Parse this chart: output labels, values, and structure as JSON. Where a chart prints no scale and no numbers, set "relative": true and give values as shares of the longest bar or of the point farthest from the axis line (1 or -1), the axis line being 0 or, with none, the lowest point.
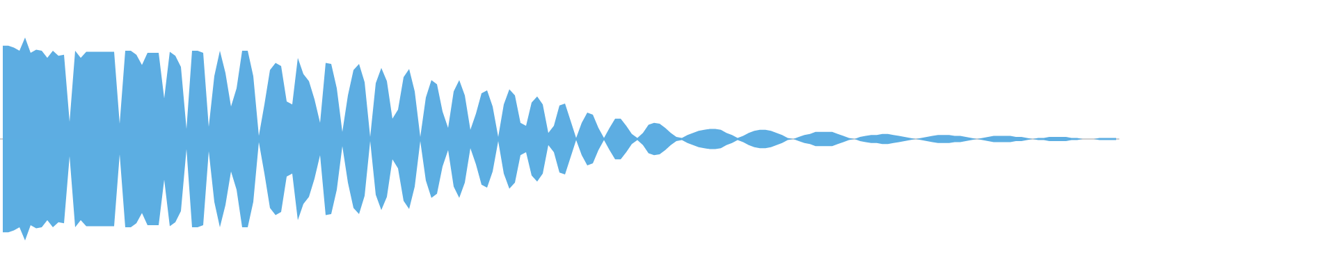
{
  "chart_data": {
    "type": "area",
    "relative": true,
    "tick_labels": false,
    "categories": [
      null,
      null,
      null,
      null,
      null,
      null,
      null,
      null,
      null,
      null,
      null,
      null,
      null,
      null,
      null,
      null,
      null,
      null,
      null,
      null,
      null,
      null,
      null,
      null,
      null,
      null,
      null,
      null,
      null,
      null,
      null,
      null,
      null,
      null,
      null,
      null,
      null,
      null,
      null,
      null,
      null,
      null,
      null,
      null,
      null,
      null,
      null,
      null,
      null,
      null,
      null,
      null,
      null,
      null,
      null,
      null,
      null,
      null,
      null,
      null,
      null,
      null,
      null,
      null,
      null,
      null,
      null,
      null,
      null,
      null,
      null,
      null,
      null,
      null,
      null,
      null,
      null,
      null,
      null,
      null,
      null,
      null,
      null,
      null,
      null,
      null,
      null,
      null,
      null,
      null,
      null,
      null,
      null,
      null,
      null,
      null,
      null,
      null,
      null,
      null,
      null,
      null,
      null,
      null,
      null,
      null,
      null,
      null,
      null,
      null,
      null,
      null,
      null,
      null,
      null,
      null,
      null,
      null,
      null,
      null,
      null,
      null,
      null,
      null,
      null,
      null,
      null,
      null,
      null,
      null,
      null,
      null,
      null,
      null,
      null,
      null,
      null,
      null,
      null,
      null,
      null,
      null,
      null,
      null,
      null,
      null,
      null,
      null,
      null,
      null,
      null,
      null,
      null,
      null,
      null,
      null,
      null,
      null,
      null,
      null,
      null,
      null,
      null,
      null,
      null,
      null,
      null,
      null,
      null,
      null,
      null,
      null,
      null,
      null,
      null,
      null,
      null,
      null,
      null,
      null,
      null,
      null,
      null,
      null,
      null,
      null,
      null,
      null,
      null,
      null,
      null,
      null,
      null,
      null,
      null,
      null,
      null,
      null,
      null,
      null,
      null
    ],
    "series": [
      {
        "color": "#5dade2",
        "values": [
          0.92,
          0.92,
          0.9,
          0.87,
          1.0,
          0.85,
          0.88,
          0.87,
          0.8,
          0.87,
          0.82,
          0.83,
          0.17,
          0.87,
          0.8,
          0.86,
          0.86,
          0.86,
          0.86,
          0.86,
          0.86,
          0.15,
          0.87,
          0.87,
          0.83,
          0.73,
          0.85,
          0.85,
          0.85,
          0.4,
          0.86,
          0.82,
          0.71,
          0.1,
          0.87,
          0.87,
          0.85,
          0.12,
          0.62,
          0.87,
          0.65,
          0.32,
          0.5,
          0.87,
          0.87,
          0.62,
          0.03,
          0.34,
          0.68,
          0.75,
          0.72,
          0.37,
          0.34,
          0.8,
          0.64,
          0.57,
          0.39,
          0.16,
          0.75,
          0.74,
          0.5,
          0.07,
          0.43,
          0.68,
          0.74,
          0.56,
          0.02,
          0.55,
          0.7,
          0.57,
          0.2,
          0.29,
          0.61,
          0.69,
          0.47,
          0.02,
          0.41,
          0.58,
          0.54,
          0.27,
          0.11,
          0.47,
          0.58,
          0.43,
          0.09,
          0.25,
          0.45,
          0.48,
          0.32,
          0.02,
          0.34,
          0.49,
          0.43,
          0.16,
          0.13,
          0.36,
          0.42,
          0.34,
          0.06,
          0.13,
          0.33,
          0.35,
          0.18,
          0.01,
          0.16,
          0.26,
          0.24,
          0.11,
          0.01,
          0.11,
          0.2,
          0.2,
          0.13,
          0.05,
          0.01,
          0.06,
          0.14,
          0.16,
          0.15,
          0.11,
          0.06,
          0.02,
          0.01,
          0.04,
          0.06,
          0.08,
          0.09,
          0.1,
          0.1,
          0.09,
          0.06,
          0.04,
          0.01,
          0.03,
          0.06,
          0.08,
          0.09,
          0.09,
          0.08,
          0.06,
          0.04,
          0.01,
          0,
          0.02,
          0.04,
          0.05,
          0.07,
          0.07,
          0.07,
          0.07,
          0.05,
          0.03,
          0.01,
          0,
          0.02,
          0.03,
          0.04,
          0.04,
          0.05,
          0.05,
          0.04,
          0.03,
          0.02,
          0.01,
          0,
          0.01,
          0.02,
          0.03,
          0.04,
          0.04,
          0.04,
          0.03,
          0.03,
          0.02,
          0.01,
          0,
          0.01,
          0.02,
          0.03,
          0.03,
          0.03,
          0.03,
          0.02,
          0.02,
          0.01,
          0,
          0.01,
          0.01,
          0.02,
          0.02,
          0.02,
          0.02,
          0.01,
          0.01,
          0,
          0,
          0,
          0.01,
          0.01,
          0.01,
          0.01
        ]
      },
      {
        "color": "#5caee2",
        "values": [
          -0.92,
          -0.92,
          -0.9,
          -0.87,
          -1.0,
          -0.85,
          -0.88,
          -0.87,
          -0.8,
          -0.87,
          -0.82,
          -0.83,
          -0.17,
          -0.87,
          -0.8,
          -0.86,
          -0.86,
          -0.86,
          -0.86,
          -0.86,
          -0.86,
          -0.15,
          -0.87,
          -0.87,
          -0.83,
          -0.73,
          -0.85,
          -0.85,
          -0.85,
          -0.4,
          -0.86,
          -0.82,
          -0.71,
          -0.1,
          -0.87,
          -0.87,
          -0.85,
          -0.12,
          -0.62,
          -0.87,
          -0.65,
          -0.32,
          -0.5,
          -0.87,
          -0.87,
          -0.62,
          -0.03,
          -0.34,
          -0.68,
          -0.75,
          -0.72,
          -0.37,
          -0.34,
          -0.8,
          -0.64,
          -0.57,
          -0.39,
          -0.16,
          -0.75,
          -0.74,
          -0.5,
          -0.07,
          -0.43,
          -0.68,
          -0.74,
          -0.56,
          -0.02,
          -0.55,
          -0.7,
          -0.57,
          -0.2,
          -0.29,
          -0.61,
          -0.69,
          -0.47,
          -0.02,
          -0.41,
          -0.58,
          -0.54,
          -0.27,
          -0.11,
          -0.47,
          -0.58,
          -0.43,
          -0.09,
          -0.25,
          -0.45,
          -0.48,
          -0.32,
          -0.02,
          -0.34,
          -0.49,
          -0.43,
          -0.16,
          -0.13,
          -0.36,
          -0.42,
          -0.34,
          -0.06,
          -0.13,
          -0.33,
          -0.35,
          -0.18,
          -0.01,
          -0.16,
          -0.26,
          -0.24,
          -0.11,
          -0.01,
          -0.11,
          -0.2,
          -0.2,
          -0.13,
          -0.05,
          -0.01,
          -0.06,
          -0.14,
          -0.16,
          -0.15,
          -0.11,
          -0.06,
          -0.02,
          -0.01,
          -0.04,
          -0.06,
          -0.08,
          -0.09,
          -0.1,
          -0.1,
          -0.09,
          -0.06,
          -0.04,
          -0.01,
          -0.03,
          -0.06,
          -0.08,
          -0.09,
          -0.09,
          -0.08,
          -0.06,
          -0.04,
          -0.01,
          0,
          -0.02,
          -0.04,
          -0.05,
          -0.07,
          -0.07,
          -0.07,
          -0.07,
          -0.05,
          -0.03,
          -0.01,
          0,
          -0.02,
          -0.03,
          -0.04,
          -0.04,
          -0.05,
          -0.05,
          -0.04,
          -0.03,
          -0.02,
          -0.01,
          0,
          -0.01,
          -0.02,
          -0.03,
          -0.04,
          -0.04,
          -0.04,
          -0.03,
          -0.03,
          -0.02,
          -0.01,
          0,
          -0.01,
          -0.02,
          -0.03,
          -0.03,
          -0.03,
          -0.03,
          -0.02,
          -0.02,
          -0.01,
          0,
          -0.01,
          -0.01,
          -0.02,
          -0.02,
          -0.02,
          -0.02,
          -0.01,
          -0.01,
          0,
          0,
          0,
          -0.01,
          -0.01,
          -0.01,
          -0.01
        ]
      }
    ]
  }
}
